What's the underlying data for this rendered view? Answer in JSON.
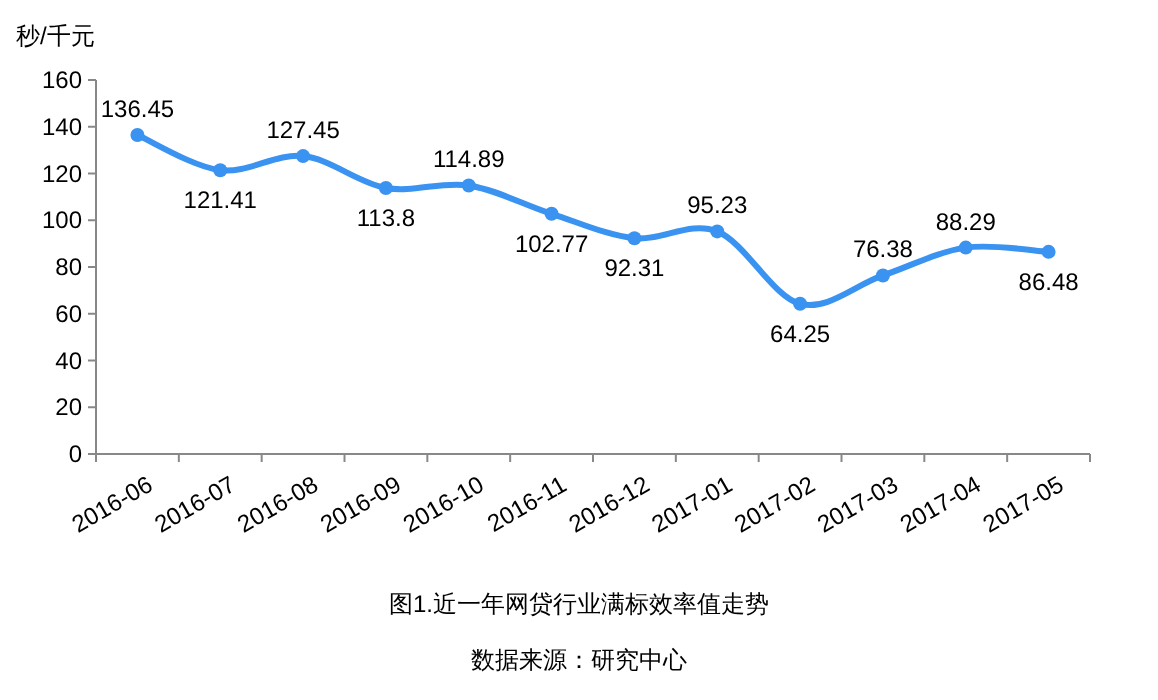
{
  "chart_data": {
    "type": "line",
    "ylabel": "秒/千元",
    "categories": [
      "2016-06",
      "2016-07",
      "2016-08",
      "2016-09",
      "2016-10",
      "2016-11",
      "2016-12",
      "2017-01",
      "2017-02",
      "2017-03",
      "2017-04",
      "2017-05"
    ],
    "series": [
      {
        "color": "#3a93f0",
        "values": [
          136.45,
          121.41,
          127.45,
          113.8,
          114.89,
          102.77,
          92.31,
          95.23,
          64.25,
          76.38,
          88.29,
          86.48
        ]
      }
    ],
    "ylim": [
      0,
      160
    ],
    "yticks": [
      0,
      20,
      40,
      60,
      80,
      100,
      120,
      140,
      160
    ],
    "marker": "circle",
    "data_labels": true,
    "grid": false,
    "title": "图1.近一年网贷行业满标效率值走势",
    "annotations": [
      "数据来源：研究中心"
    ]
  }
}
